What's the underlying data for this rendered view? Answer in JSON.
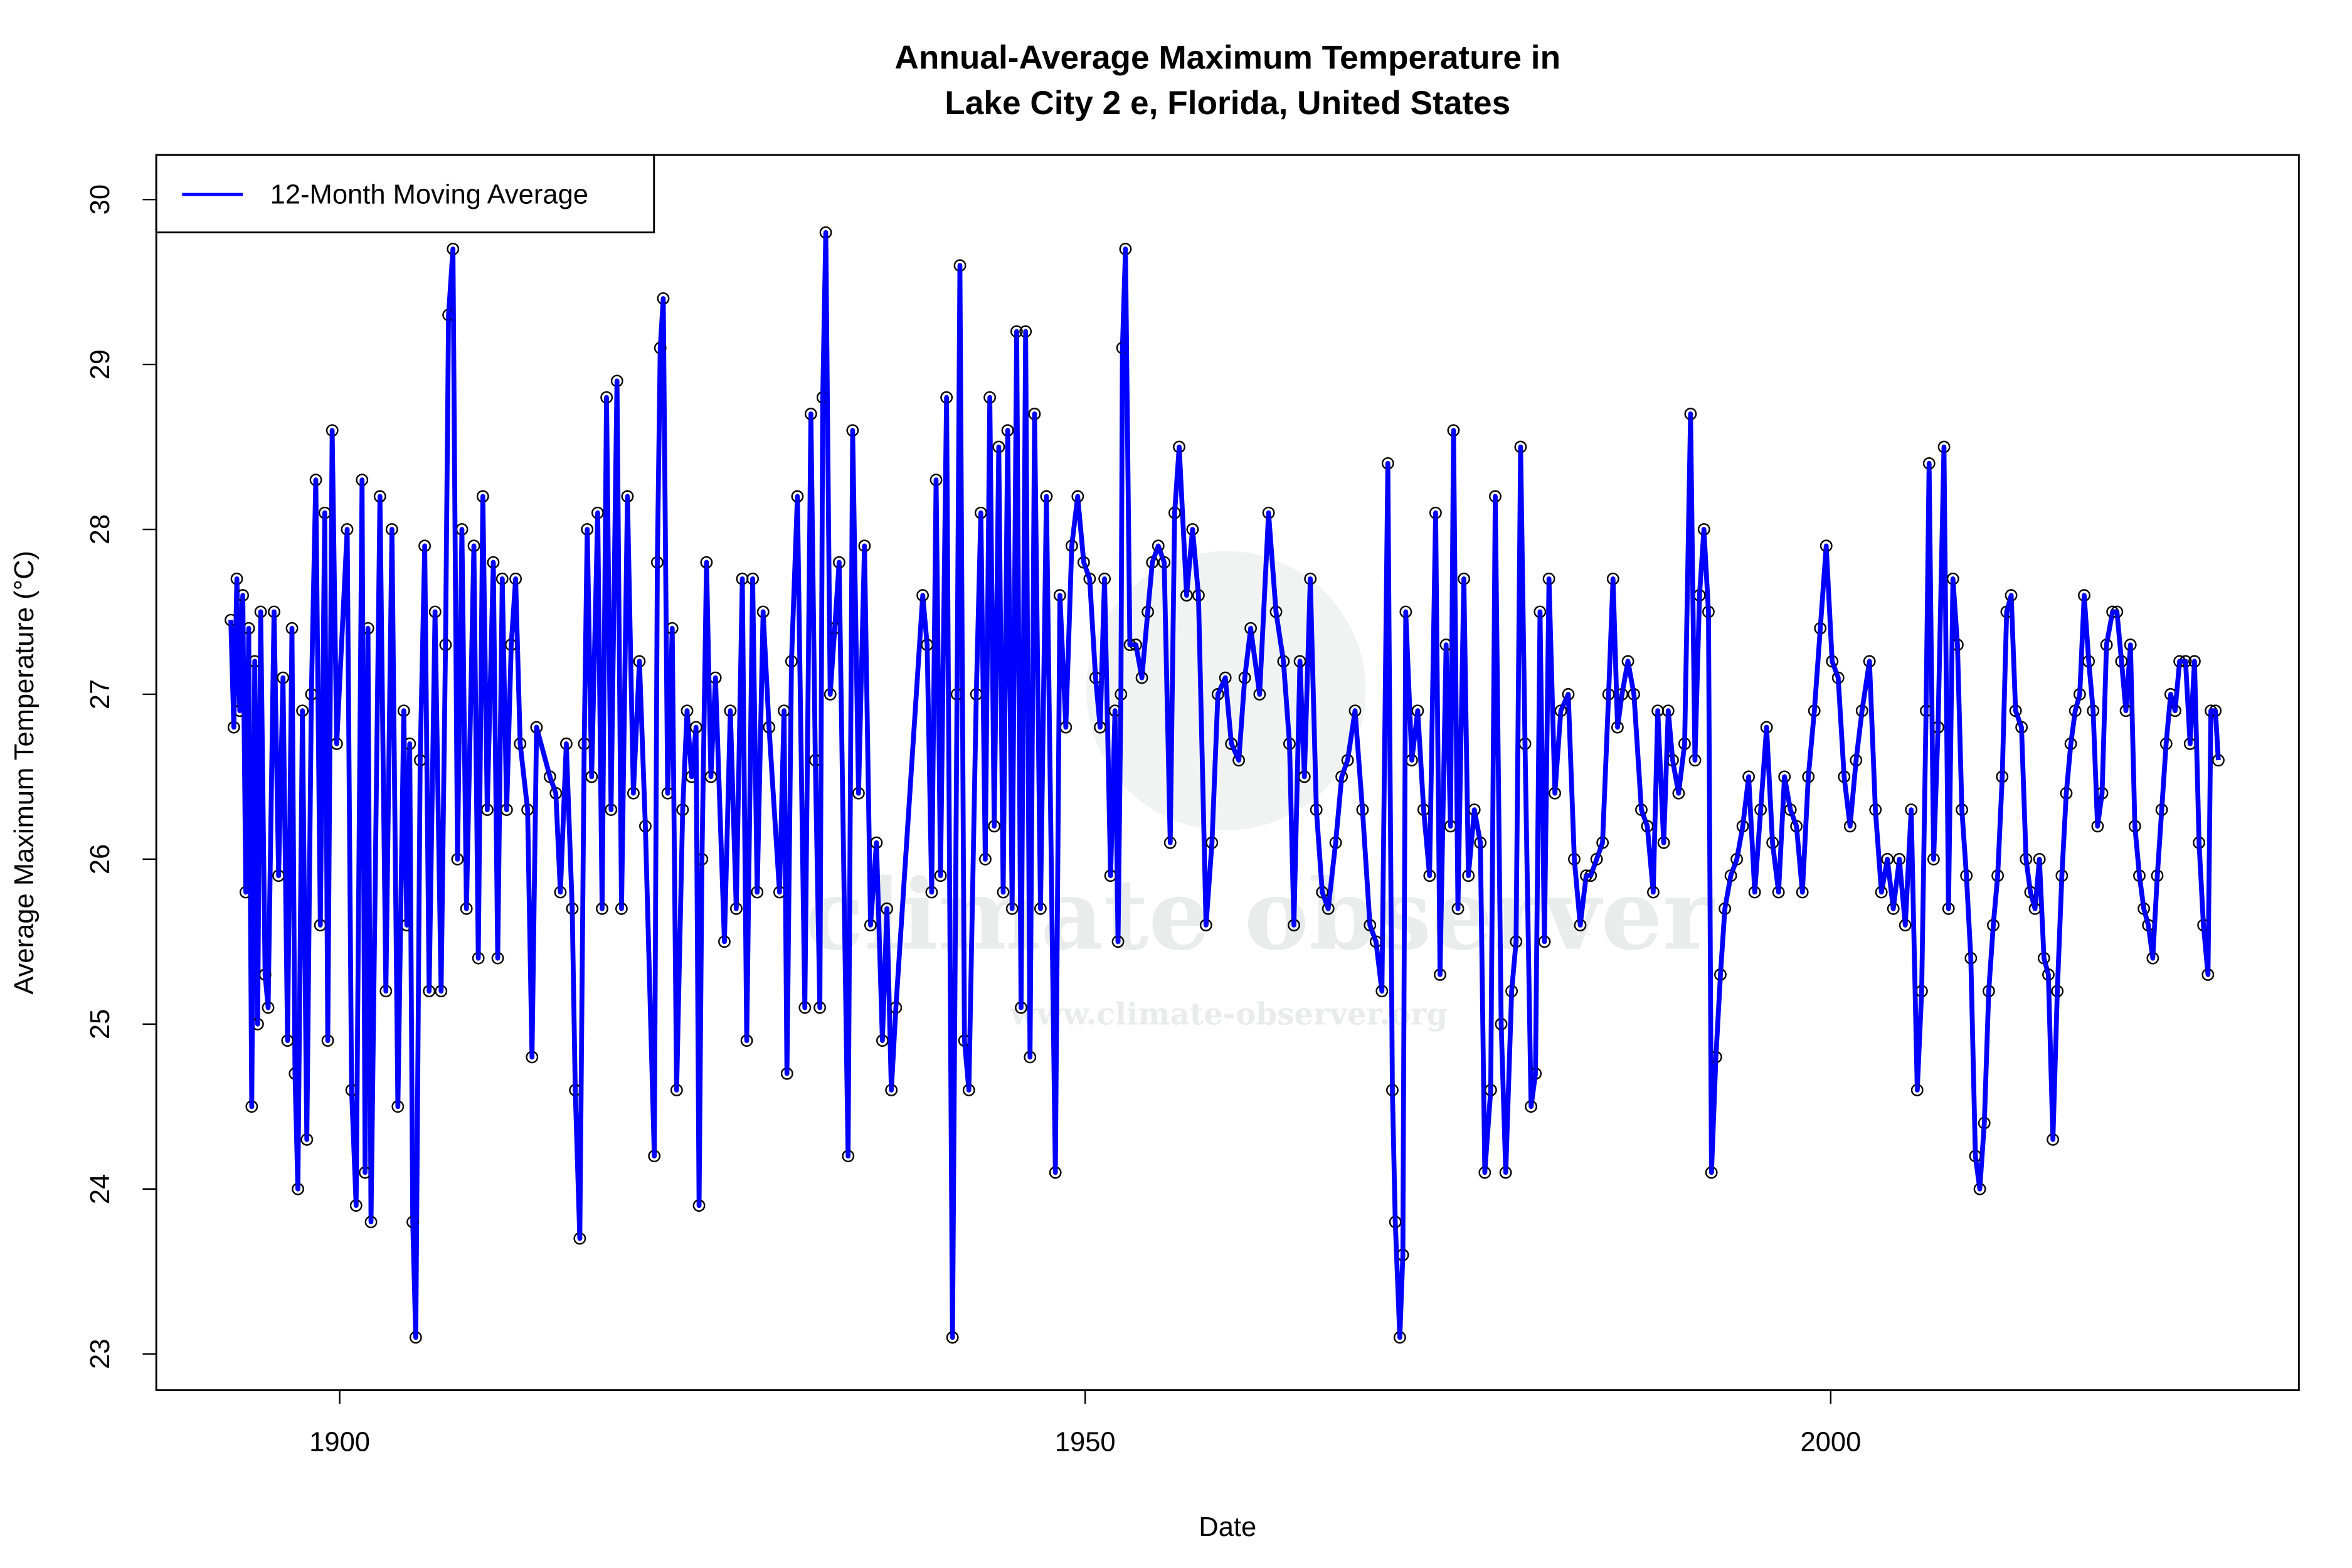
{
  "chart_data": {
    "type": "line",
    "title": "Annual-Average Maximum Temperature in\nLake City 2 e, Florida, United States",
    "title_lines": [
      "Annual-Average Maximum Temperature in",
      "Lake City 2 e, Florida, United States"
    ],
    "xlabel": "Date",
    "ylabel": "Average Maximum Temperature (°C)",
    "xlim": [
      1887.7,
      2031.4
    ],
    "ylim": [
      22.78,
      30.27
    ],
    "x_ticks": [
      1900,
      1950,
      2000
    ],
    "x_tick_labels": [
      "1900",
      "1950",
      "2000"
    ],
    "y_ticks": [
      23,
      24,
      25,
      26,
      27,
      28,
      29,
      30
    ],
    "y_tick_labels": [
      "23",
      "24",
      "25",
      "26",
      "27",
      "28",
      "29",
      "30"
    ],
    "grid": false,
    "legend": {
      "placement": "top-left",
      "entries": [
        "12-Month Moving Average"
      ]
    },
    "colors": {
      "line": "#0000ff",
      "points": "#000000"
    },
    "markers": "open-circle",
    "watermark": {
      "text": "climate observer",
      "url": "www.climate-observer.org"
    },
    "series": [
      {
        "name": "12-Month Moving Average",
        "x": [
          1892.7,
          1892.9,
          1893.1,
          1893.3,
          1893.5,
          1893.7,
          1893.9,
          1894.1,
          1894.3,
          1894.5,
          1894.7,
          1895.0,
          1895.2,
          1895.6,
          1895.9,
          1896.2,
          1896.5,
          1896.8,
          1897.0,
          1897.2,
          1897.5,
          1897.8,
          1898.1,
          1898.4,
          1898.7,
          1899.0,
          1899.2,
          1899.5,
          1899.8,
          1900.5,
          1900.8,
          1901.1,
          1901.5,
          1901.7,
          1901.9,
          1902.1,
          1902.7,
          1903.1,
          1903.5,
          1903.9,
          1904.3,
          1904.5,
          1904.7,
          1904.9,
          1905.1,
          1905.4,
          1905.7,
          1906.0,
          1906.4,
          1906.8,
          1907.1,
          1907.3,
          1907.6,
          1907.9,
          1908.2,
          1908.5,
          1909.0,
          1909.3,
          1909.6,
          1909.9,
          1910.3,
          1910.6,
          1910.9,
          1911.2,
          1911.5,
          1911.8,
          1912.1,
          1912.6,
          1912.9,
          1913.2,
          1914.1,
          1914.5,
          1914.8,
          1915.2,
          1915.6,
          1915.8,
          1916.1,
          1916.4,
          1916.6,
          1916.9,
          1917.3,
          1917.6,
          1917.9,
          1918.2,
          1918.6,
          1918.9,
          1919.3,
          1919.7,
          1920.1,
          1920.5,
          1921.1,
          1921.3,
          1921.5,
          1921.7,
          1922.0,
          1922.3,
          1922.6,
          1923.0,
          1923.3,
          1923.6,
          1923.9,
          1924.1,
          1924.3,
          1924.6,
          1924.9,
          1925.2,
          1925.8,
          1926.2,
          1926.6,
          1927.0,
          1927.3,
          1927.7,
          1928.0,
          1928.4,
          1928.8,
          1929.5,
          1929.8,
          1930.0,
          1930.3,
          1930.7,
          1931.2,
          1931.6,
          1931.9,
          1932.2,
          1932.4,
          1932.6,
          1932.9,
          1933.2,
          1933.5,
          1934.1,
          1934.4,
          1934.8,
          1935.2,
          1935.6,
          1936.0,
          1936.4,
          1936.7,
          1937.0,
          1937.3,
          1939.1,
          1939.4,
          1939.7,
          1940.0,
          1940.3,
          1940.7,
          1941.1,
          1941.4,
          1941.6,
          1941.9,
          1942.2,
          1942.7,
          1943.0,
          1943.3,
          1943.6,
          1943.9,
          1944.2,
          1944.5,
          1944.8,
          1945.1,
          1945.4,
          1945.7,
          1946.0,
          1946.3,
          1946.6,
          1947.0,
          1947.4,
          1948.0,
          1948.3,
          1948.7,
          1949.1,
          1949.5,
          1949.9,
          1950.3,
          1950.7,
          1951.0,
          1951.3,
          1951.7,
          1952.0,
          1952.2,
          1952.4,
          1952.5,
          1952.7,
          1953.0,
          1953.4,
          1953.8,
          1954.2,
          1954.5,
          1954.9,
          1955.3,
          1955.7,
          1956.0,
          1956.3,
          1956.8,
          1957.2,
          1957.6,
          1958.1,
          1958.5,
          1958.9,
          1959.4,
          1959.8,
          1960.3,
          1960.7,
          1961.1,
          1961.7,
          1962.3,
          1962.8,
          1963.3,
          1963.7,
          1964.0,
          1964.4,
          1964.7,
          1965.1,
          1965.5,
          1965.9,
          1966.3,
          1966.8,
          1967.2,
          1967.6,
          1968.1,
          1968.6,
          1969.1,
          1969.5,
          1969.9,
          1970.3,
          1970.6,
          1970.8,
          1971.1,
          1971.3,
          1971.5,
          1971.9,
          1972.3,
          1972.7,
          1973.1,
          1973.5,
          1973.8,
          1974.2,
          1974.5,
          1974.7,
          1975.0,
          1975.4,
          1975.7,
          1976.1,
          1976.5,
          1976.8,
          1977.2,
          1977.5,
          1977.9,
          1978.2,
          1978.6,
          1978.9,
          1979.2,
          1979.5,
          1979.9,
          1980.2,
          1980.5,
          1980.8,
          1981.1,
          1981.5,
          1981.9,
          1982.4,
          1982.8,
          1983.2,
          1983.6,
          1983.9,
          1984.3,
          1984.7,
          1985.1,
          1985.4,
          1985.7,
          1986.0,
          1986.4,
          1986.8,
          1987.3,
          1987.7,
          1988.1,
          1988.4,
          1988.8,
          1989.1,
          1989.4,
          1989.8,
          1990.2,
          1990.6,
          1990.9,
          1991.2,
          1991.5,
          1991.8,
          1992.0,
          1992.3,
          1992.6,
          1992.9,
          1993.3,
          1993.7,
          1994.1,
          1994.5,
          1994.9,
          1995.3,
          1995.7,
          1996.1,
          1996.5,
          1996.9,
          1997.3,
          1997.7,
          1998.1,
          1998.5,
          1998.9,
          1999.3,
          1999.7,
          2000.1,
          2000.5,
          2000.9,
          2001.3,
          2001.7,
          2002.1,
          2002.6,
          2003.0,
          2003.4,
          2003.8,
          2004.2,
          2004.6,
          2005.0,
          2005.4,
          2005.8,
          2006.1,
          2006.4,
          2006.6,
          2006.9,
          2007.2,
          2007.6,
          2007.9,
          2008.2,
          2008.5,
          2008.8,
          2009.1,
          2009.4,
          2009.7,
          2010.0,
          2010.3,
          2010.6,
          2010.9,
          2011.2,
          2011.5,
          2011.8,
          2012.1,
          2012.4,
          2012.8,
          2013.1,
          2013.4,
          2013.7,
          2014.0,
          2014.3,
          2014.6,
          2014.9,
          2015.2,
          2015.5,
          2015.8,
          2016.1,
          2016.4,
          2016.7,
          2017.0,
          2017.3,
          2017.6,
          2017.9,
          2018.2,
          2018.5,
          2018.9,
          2019.2,
          2019.5,
          2019.8,
          2020.1,
          2020.4,
          2020.7,
          2021.0,
          2021.3,
          2021.6,
          2021.9,
          2022.2,
          2022.5,
          2022.8,
          2023.1,
          2023.4,
          2023.8,
          2024.1,
          2024.4,
          2024.7,
          2025.0,
          2025.3,
          2025.5,
          2025.8,
          2026.0
        ],
        "y": [
          27.45,
          26.8,
          27.7,
          26.9,
          27.6,
          25.8,
          27.4,
          24.5,
          27.2,
          25.0,
          27.5,
          25.3,
          25.1,
          27.5,
          25.9,
          27.1,
          24.9,
          27.4,
          24.7,
          24.0,
          26.9,
          24.3,
          27.0,
          28.3,
          25.6,
          28.1,
          24.9,
          28.6,
          26.7,
          28.0,
          24.6,
          23.9,
          28.3,
          24.1,
          27.4,
          23.8,
          28.2,
          25.2,
          28.0,
          24.5,
          26.9,
          25.6,
          26.7,
          23.8,
          23.1,
          26.6,
          27.9,
          25.2,
          27.5,
          25.2,
          27.3,
          29.3,
          29.7,
          26.0,
          28.0,
          25.7,
          27.9,
          25.4,
          28.2,
          26.3,
          27.8,
          25.4,
          27.7,
          26.3,
          27.3,
          27.7,
          26.7,
          26.3,
          24.8,
          26.8,
          26.5,
          26.4,
          25.8,
          26.7,
          25.7,
          24.6,
          23.7,
          26.7,
          28.0,
          26.5,
          28.1,
          25.7,
          28.8,
          26.3,
          28.9,
          25.7,
          28.2,
          26.4,
          27.2,
          26.2,
          24.2,
          27.8,
          29.1,
          29.4,
          26.4,
          27.4,
          24.6,
          26.3,
          26.9,
          26.5,
          26.8,
          23.9,
          26.0,
          27.8,
          26.5,
          27.1,
          25.5,
          26.9,
          25.7,
          27.7,
          24.9,
          27.7,
          25.8,
          27.5,
          26.8,
          25.8,
          26.9,
          24.7,
          27.2,
          28.2,
          25.1,
          28.7,
          26.6,
          25.1,
          28.8,
          29.8,
          27.0,
          27.4,
          27.8,
          24.2,
          28.6,
          26.4,
          27.9,
          25.6,
          26.1,
          24.9,
          25.7,
          24.6,
          25.1,
          27.6,
          27.3,
          25.8,
          28.3,
          25.9,
          28.8,
          23.1,
          27.0,
          29.6,
          24.9,
          24.6,
          27.0,
          28.1,
          26.0,
          28.8,
          26.2,
          28.5,
          25.8,
          28.6,
          25.7,
          29.2,
          25.1,
          29.2,
          24.8,
          28.7,
          25.7,
          28.2,
          24.1,
          27.6,
          26.8,
          27.9,
          28.2,
          27.8,
          27.7,
          27.1,
          26.8,
          27.7,
          25.9,
          26.9,
          25.5,
          27.0,
          29.1,
          29.7,
          27.3,
          27.3,
          27.1,
          27.5,
          27.8,
          27.9,
          27.8,
          26.1,
          28.1,
          28.5,
          27.6,
          28.0,
          27.6,
          25.6,
          26.1,
          27.0,
          27.1,
          26.7,
          26.6,
          27.1,
          27.4,
          27.0,
          28.1,
          27.5,
          27.2,
          26.7,
          25.6,
          27.2,
          26.5,
          27.7,
          26.3,
          25.8,
          25.7,
          26.1,
          26.5,
          26.6,
          26.9,
          26.3,
          25.6,
          25.5,
          25.2,
          28.4,
          24.6,
          23.8,
          23.1,
          23.6,
          27.5,
          26.6,
          26.9,
          26.3,
          25.9,
          28.1,
          25.3,
          27.3,
          26.2,
          28.6,
          25.7,
          27.7,
          25.9,
          26.3,
          26.1,
          24.1,
          24.6,
          28.2,
          25.0,
          24.1,
          25.2,
          25.5,
          28.5,
          26.7,
          24.5,
          24.7,
          27.5,
          25.5,
          27.7,
          26.4,
          26.9,
          27.0,
          26.0,
          25.6,
          25.9,
          25.9,
          26.0,
          26.1,
          27.0,
          27.7,
          26.8,
          27.0,
          27.2,
          27.0,
          26.3,
          26.2,
          25.8,
          26.9,
          26.1,
          26.9,
          26.6,
          26.4,
          26.7,
          28.7,
          26.6,
          27.6,
          28.0,
          27.5,
          24.1,
          24.8,
          25.3,
          25.7,
          25.9,
          26.0,
          26.2,
          26.5,
          25.8,
          26.3,
          26.8,
          26.1,
          25.8,
          26.5,
          26.3,
          26.2,
          25.8,
          26.5,
          26.9,
          27.4,
          27.9,
          27.2,
          27.1,
          26.5,
          26.2,
          26.6,
          26.9,
          27.2,
          26.3,
          25.8,
          26.0,
          25.7,
          26.0,
          25.6,
          26.3,
          24.6,
          25.2,
          26.9,
          28.4,
          26.0,
          26.8,
          28.5,
          25.7,
          27.7,
          27.3,
          26.3,
          25.9,
          25.4,
          24.2,
          24.0,
          24.4,
          25.2,
          25.6,
          25.9,
          26.5,
          27.5,
          27.6,
          26.9,
          26.8,
          26.0,
          25.8,
          25.7,
          26.0,
          25.4,
          25.3,
          24.3,
          25.2,
          25.9,
          26.4,
          26.7,
          26.9,
          27.0,
          27.6,
          27.2,
          26.9,
          26.2,
          26.4,
          27.3,
          27.5,
          27.5,
          27.2,
          26.9,
          27.3,
          26.2,
          25.9,
          25.7,
          25.6,
          25.4,
          25.9,
          26.3,
          26.7,
          27.0,
          26.9,
          27.2,
          27.2,
          26.7,
          27.2,
          26.1,
          25.6,
          25.3,
          26.9,
          26.9,
          26.6
        ]
      }
    ]
  }
}
